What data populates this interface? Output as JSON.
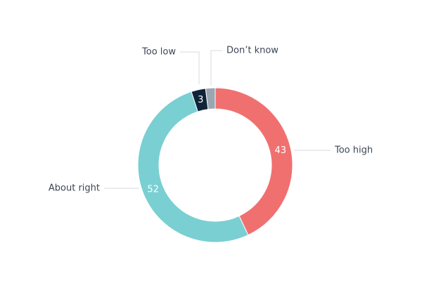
{
  "chart_data": {
    "type": "pie",
    "variant": "donut",
    "title": "",
    "categories": [
      "Too high",
      "About right",
      "Too low",
      "Don't know"
    ],
    "values": [
      43,
      52,
      3,
      2
    ],
    "data_labels": [
      "43",
      "52",
      "3",
      ""
    ],
    "category_labels": [
      "Too high",
      "About right",
      "Too low",
      "Don’t know"
    ],
    "colors": [
      "#f07070",
      "#7acfd2",
      "#0f2438",
      "#9aa7b1"
    ],
    "legend": "none"
  }
}
